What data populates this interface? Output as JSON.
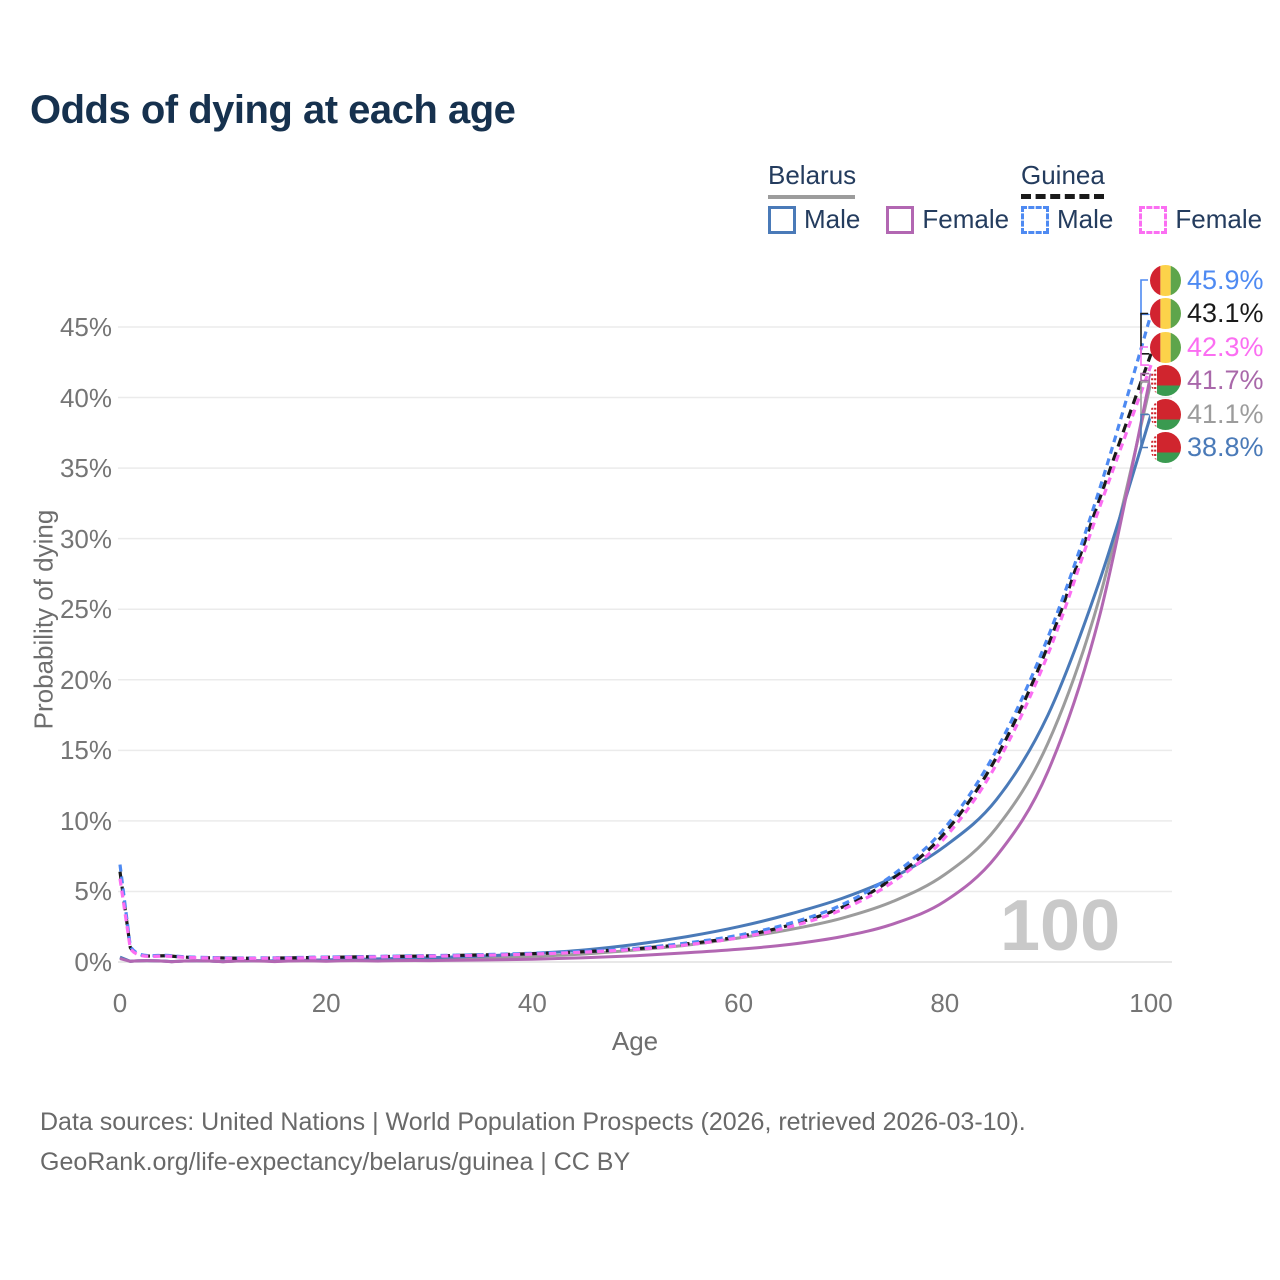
{
  "title": "Odds of dying at each age",
  "legend": {
    "belarus": {
      "label": "Belarus",
      "male_label": "Male",
      "female_label": "Female"
    },
    "guinea": {
      "label": "Guinea",
      "male_label": "Male",
      "female_label": "Female"
    }
  },
  "chart_data": {
    "type": "line",
    "title": "Odds of dying at each age",
    "xlabel": "Age",
    "ylabel": "Probability of dying",
    "watermark": "100",
    "xlim": [
      0,
      100
    ],
    "ylim": [
      0,
      46
    ],
    "grid": "horizontal-only",
    "legend_position": "top-right",
    "x_ticks": {
      "values": [
        0,
        20,
        40,
        60,
        80,
        100
      ],
      "labels": [
        "0",
        "20",
        "40",
        "60",
        "80",
        "100"
      ]
    },
    "y_ticks": {
      "values": [
        0,
        5,
        10,
        15,
        20,
        25,
        30,
        35,
        40,
        45
      ],
      "labels": [
        "0%",
        "5%",
        "10%",
        "15%",
        "20%",
        "25%",
        "30%",
        "35%",
        "40%",
        "45%"
      ]
    },
    "x": [
      0,
      1,
      5,
      10,
      15,
      20,
      25,
      30,
      35,
      40,
      45,
      50,
      55,
      60,
      65,
      70,
      75,
      80,
      85,
      90,
      95,
      100
    ],
    "series": [
      {
        "key": "belarus_total",
        "name": "Belarus",
        "country": "Belarus",
        "sex": "Both",
        "style": "solid",
        "color": "#9c9c9c",
        "end_value_pct": 41.1,
        "values": [
          0.3,
          0.045,
          0.025,
          0.025,
          0.055,
          0.1,
          0.15,
          0.2,
          0.28,
          0.4,
          0.57,
          0.85,
          1.2,
          1.7,
          2.3,
          3.1,
          4.3,
          6.2,
          9.5,
          15.5,
          25.8,
          41.1
        ]
      },
      {
        "key": "belarus_male",
        "name": "Belarus Male",
        "country": "Belarus",
        "sex": "Male",
        "style": "solid",
        "color": "#4a7ab8",
        "end_value_pct": 38.8,
        "values": [
          0.35,
          0.05,
          0.03,
          0.03,
          0.08,
          0.15,
          0.22,
          0.3,
          0.42,
          0.6,
          0.85,
          1.25,
          1.8,
          2.5,
          3.4,
          4.5,
          6.0,
          8.2,
          11.5,
          17.5,
          27.0,
          38.8
        ]
      },
      {
        "key": "belarus_female",
        "name": "Belarus Female",
        "country": "Belarus",
        "sex": "Female",
        "style": "solid",
        "color": "#b267b2",
        "end_value_pct": 41.7,
        "values": [
          0.25,
          0.04,
          0.02,
          0.02,
          0.03,
          0.05,
          0.07,
          0.1,
          0.14,
          0.2,
          0.3,
          0.45,
          0.65,
          0.9,
          1.25,
          1.8,
          2.7,
          4.3,
          7.5,
          13.5,
          24.5,
          41.7
        ]
      },
      {
        "key": "guinea_total",
        "name": "Guinea",
        "country": "Guinea",
        "sex": "Both",
        "style": "dashed",
        "color": "#1a1a1a",
        "end_value_pct": 43.1,
        "values": [
          6.4,
          1.02,
          0.42,
          0.28,
          0.28,
          0.33,
          0.38,
          0.43,
          0.5,
          0.59,
          0.73,
          0.94,
          1.28,
          1.8,
          2.62,
          3.87,
          5.95,
          9.15,
          14.5,
          22.4,
          32.8,
          43.1
        ]
      },
      {
        "key": "guinea_male",
        "name": "Guinea Male",
        "country": "Guinea",
        "sex": "Male",
        "style": "dashed",
        "color": "#4e8af2",
        "end_value_pct": 45.9,
        "values": [
          6.9,
          1.1,
          0.45,
          0.3,
          0.3,
          0.35,
          0.4,
          0.45,
          0.52,
          0.62,
          0.76,
          0.97,
          1.35,
          1.9,
          2.75,
          4.05,
          6.2,
          9.5,
          15.0,
          23.0,
          33.5,
          45.9
        ]
      },
      {
        "key": "guinea_female",
        "name": "Guinea Female",
        "country": "Guinea",
        "sex": "Female",
        "style": "dashed",
        "color": "#fb6ef2",
        "end_value_pct": 42.3,
        "values": [
          5.9,
          0.95,
          0.4,
          0.27,
          0.27,
          0.31,
          0.36,
          0.41,
          0.47,
          0.56,
          0.7,
          0.9,
          1.22,
          1.72,
          2.5,
          3.7,
          5.7,
          8.8,
          14.0,
          21.8,
          32.2,
          42.3
        ]
      }
    ]
  },
  "end_labels": [
    {
      "value": "45.9%",
      "series": "Guinea Male",
      "flag": "guinea",
      "color": "#4e8af2",
      "pct": 45.9
    },
    {
      "value": "43.1%",
      "series": "Guinea",
      "flag": "guinea",
      "color": "#1a1a1a",
      "pct": 43.1
    },
    {
      "value": "42.3%",
      "series": "Guinea Female",
      "flag": "guinea",
      "color": "#fb6ef2",
      "pct": 42.3
    },
    {
      "value": "41.7%",
      "series": "Belarus Female",
      "flag": "belarus",
      "color": "#a968aa",
      "pct": 41.7
    },
    {
      "value": "41.1%",
      "series": "Belarus",
      "flag": "belarus",
      "color": "#9c9c9c",
      "pct": 41.1
    },
    {
      "value": "38.8%",
      "series": "Belarus Male",
      "flag": "belarus",
      "color": "#4a7ab8",
      "pct": 38.8
    }
  ],
  "footer": {
    "line1": "Data sources: United Nations | World Population Prospects (2026, retrieved 2026-03-10).",
    "line2": "GeoRank.org/life-expectancy/belarus/guinea | CC BY"
  },
  "colors": {
    "title_text": "#16314e",
    "legend_text": "#243c5e",
    "axis_text": "#6e6e6e",
    "tick_text": "#757575",
    "gridline": "#ebebeb",
    "axis_line": "#e0e0e0",
    "watermark": "#c9c9c9",
    "footer_text": "#696969",
    "flag_guinea": [
      "#d22330",
      "#fcd24a",
      "#5ea54b"
    ],
    "flag_belarus_red": "#d0252e",
    "flag_belarus_green": "#3a9a50"
  }
}
